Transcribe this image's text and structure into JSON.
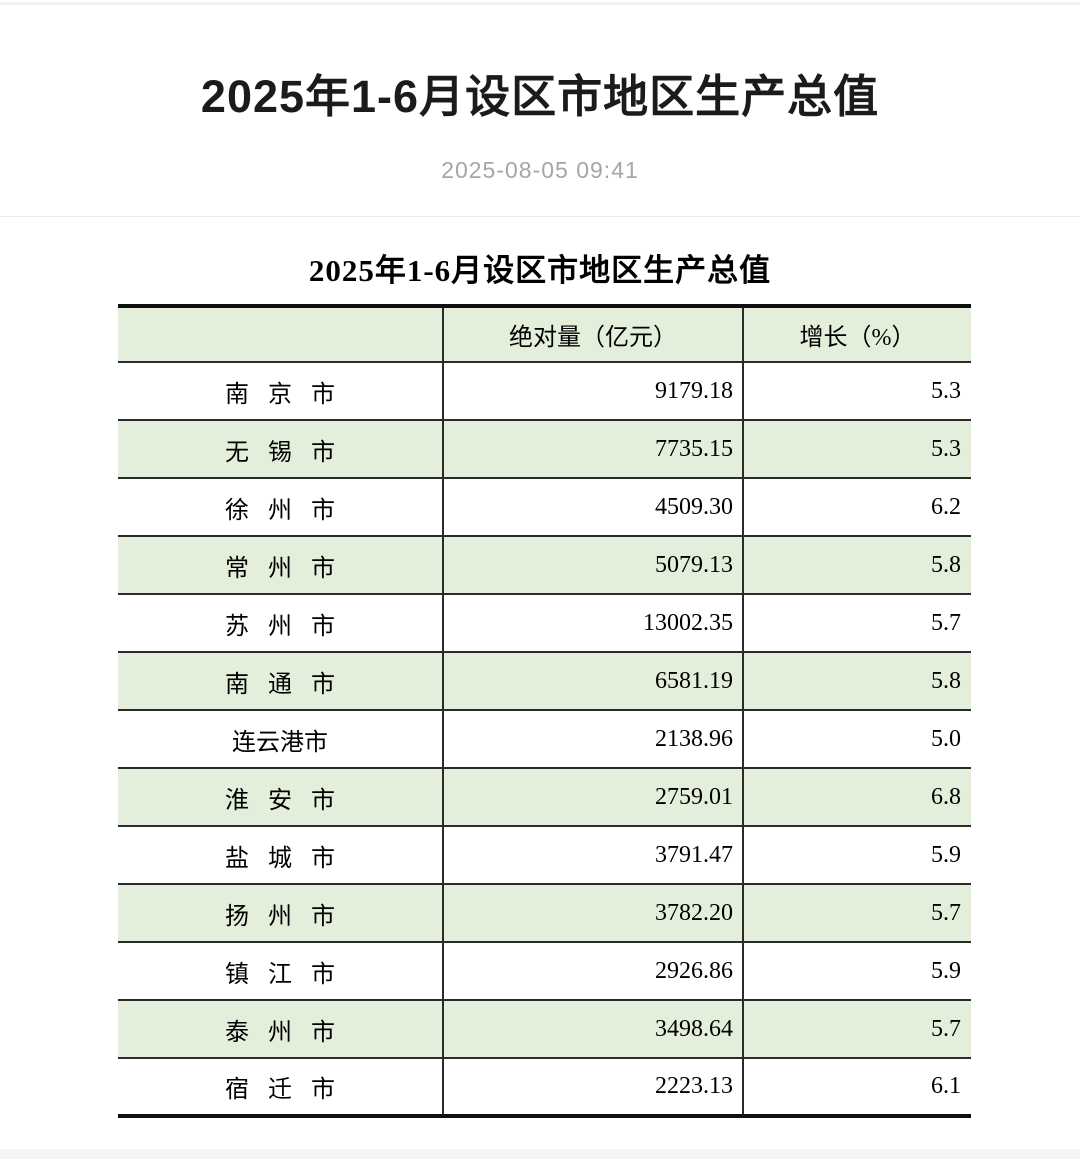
{
  "header": {
    "title": "2025年1-6月设区市地区生产总值",
    "publish_time": "2025-08-05 09:41"
  },
  "table": {
    "caption": "2025年1-6月设区市地区生产总值",
    "columns": [
      "",
      "绝对量（亿元）",
      "增长（%）"
    ],
    "rows": [
      {
        "city": "南 京 市",
        "absolute": "9179.18",
        "growth": "5.3"
      },
      {
        "city": "无 锡 市",
        "absolute": "7735.15",
        "growth": "5.3"
      },
      {
        "city": "徐 州 市",
        "absolute": "4509.30",
        "growth": "6.2"
      },
      {
        "city": "常 州 市",
        "absolute": "5079.13",
        "growth": "5.8"
      },
      {
        "city": "苏 州 市",
        "absolute": "13002.35",
        "growth": "5.7"
      },
      {
        "city": "南 通 市",
        "absolute": "6581.19",
        "growth": "5.8"
      },
      {
        "city": "连云港市",
        "absolute": "2138.96",
        "growth": "5.0"
      },
      {
        "city": "淮 安 市",
        "absolute": "2759.01",
        "growth": "6.8"
      },
      {
        "city": "盐 城 市",
        "absolute": "3791.47",
        "growth": "5.9"
      },
      {
        "city": "扬 州 市",
        "absolute": "3782.20",
        "growth": "5.7"
      },
      {
        "city": "镇 江 市",
        "absolute": "2926.86",
        "growth": "5.9"
      },
      {
        "city": "泰 州 市",
        "absolute": "3498.64",
        "growth": "5.7"
      },
      {
        "city": "宿 迁 市",
        "absolute": "2223.13",
        "growth": "6.1"
      }
    ]
  },
  "colors": {
    "row_green": "#e3efdb",
    "border_thick": "#0f0f0f",
    "border_thin": "#2a2a2a",
    "title_text": "#1b1b1b",
    "timestamp_text": "#a6a6a6",
    "section_divider": "#ececec",
    "bottom_strip": "#f5f5f5"
  },
  "chart_data": {
    "type": "table",
    "title": "2025年1-6月设区市地区生产总值",
    "categories": [
      "南京市",
      "无锡市",
      "徐州市",
      "常州市",
      "苏州市",
      "南通市",
      "连云港市",
      "淮安市",
      "盐城市",
      "扬州市",
      "镇江市",
      "泰州市",
      "宿迁市"
    ],
    "series": [
      {
        "name": "绝对量（亿元）",
        "values": [
          9179.18,
          7735.15,
          4509.3,
          5079.13,
          13002.35,
          6581.19,
          2138.96,
          2759.01,
          3791.47,
          3782.2,
          2926.86,
          3498.64,
          2223.13
        ]
      },
      {
        "name": "增长（%）",
        "values": [
          5.3,
          5.3,
          6.2,
          5.8,
          5.7,
          5.8,
          5.0,
          6.8,
          5.9,
          5.7,
          5.9,
          5.7,
          6.1
        ]
      }
    ]
  }
}
